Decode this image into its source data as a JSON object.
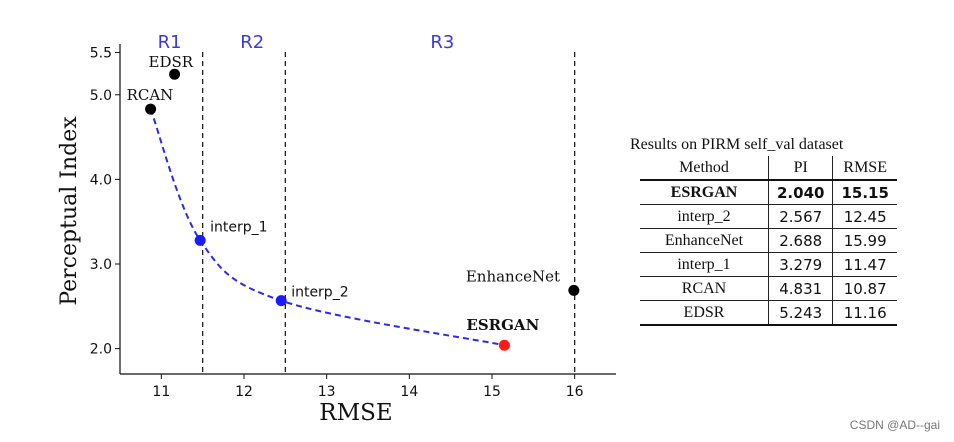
{
  "chart_data": {
    "type": "scatter",
    "xlabel": "RMSE",
    "ylabel": "Perceptual Index",
    "xlim": [
      10.5,
      16.5
    ],
    "ylim": [
      1.7,
      5.6
    ],
    "xticks": [
      11,
      12,
      13,
      14,
      15,
      16
    ],
    "yticks": [
      2.0,
      3.0,
      4.0,
      5.0,
      5.5
    ],
    "ytick_labels": [
      "2.0",
      "3.0",
      "4.0",
      "5.0",
      "5.5"
    ],
    "grid": false,
    "region_lines": [
      11.5,
      12.5,
      16.0
    ],
    "regions": [
      {
        "label": "R1",
        "x": 11.1
      },
      {
        "label": "R2",
        "x": 12.1
      },
      {
        "label": "R3",
        "x": 14.4
      }
    ],
    "points": [
      {
        "label": "EDSR",
        "x": 11.16,
        "y": 5.243,
        "color": "#000000",
        "bold": false
      },
      {
        "label": "RCAN",
        "x": 10.87,
        "y": 4.831,
        "color": "#000000",
        "bold": false
      },
      {
        "label": "interp_1",
        "x": 11.47,
        "y": 3.279,
        "color": "#1a1aff",
        "bold": false
      },
      {
        "label": "interp_2",
        "x": 12.45,
        "y": 2.567,
        "color": "#1a1aff",
        "bold": false
      },
      {
        "label": "ESRGAN",
        "x": 15.15,
        "y": 2.04,
        "color": "#ff1a1a",
        "bold": true
      },
      {
        "label": "EnhanceNet",
        "x": 15.99,
        "y": 2.688,
        "color": "#000000",
        "bold": false
      }
    ],
    "curve": {
      "color": "#2a2aee",
      "style": "dashed",
      "through": [
        [
          10.87,
          4.831
        ],
        [
          11.47,
          3.279
        ],
        [
          12.45,
          2.567
        ],
        [
          15.15,
          2.04
        ]
      ]
    }
  },
  "table": {
    "title": "Results on PIRM self_val dataset",
    "headers": [
      "Method",
      "PI",
      "RMSE"
    ],
    "rows": [
      {
        "method": "ESRGAN",
        "pi": "2.040",
        "rmse": "15.15",
        "bold": true
      },
      {
        "method": "interp_2",
        "pi": "2.567",
        "rmse": "12.45",
        "bold": false
      },
      {
        "method": "EnhanceNet",
        "pi": "2.688",
        "rmse": "15.99",
        "bold": false
      },
      {
        "method": "interp_1",
        "pi": "3.279",
        "rmse": "11.47",
        "bold": false
      },
      {
        "method": "RCAN",
        "pi": "4.831",
        "rmse": "10.87",
        "bold": false
      },
      {
        "method": "EDSR",
        "pi": "5.243",
        "rmse": "11.16",
        "bold": false
      }
    ]
  },
  "watermark": "CSDN @AD--gai",
  "colors": {
    "region_label": "#3b3bd8",
    "axis": "#111111"
  }
}
